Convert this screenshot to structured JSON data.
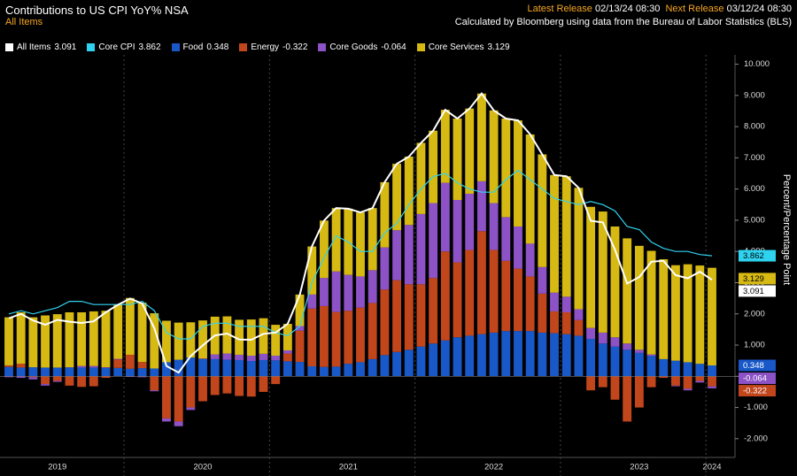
{
  "chart_data": {
    "type": "bar",
    "title": "Contributions to US CPI YoY% NSA",
    "subtitle": "All Items",
    "latest_release_label": "Latest Release",
    "latest_release": "02/13/24 08:30",
    "next_release_label": "Next Release",
    "next_release": "03/12/24 08:30",
    "source": "Calculated by Bloomberg using data from the Bureau of Labor Statistics (BLS)",
    "y_label": "Percent/Percentage Point",
    "categories": [
      null,
      null,
      null,
      null,
      "2019",
      null,
      null,
      null,
      null,
      null,
      null,
      null,
      null,
      null,
      null,
      null,
      "2020",
      null,
      null,
      null,
      null,
      null,
      null,
      null,
      null,
      null,
      null,
      null,
      "2021",
      null,
      null,
      null,
      null,
      null,
      null,
      null,
      null,
      null,
      null,
      null,
      "2022",
      null,
      null,
      null,
      null,
      null,
      null,
      null,
      null,
      null,
      null,
      null,
      "2023",
      null,
      null,
      null,
      null,
      null,
      "2024"
    ],
    "ylim": [
      -2.6,
      10.3
    ],
    "yticks": [
      {
        "value": 10,
        "label": "10.000"
      },
      {
        "value": 9,
        "label": "9.000"
      },
      {
        "value": 8,
        "label": "8.000"
      },
      {
        "value": 7,
        "label": "7.000"
      },
      {
        "value": 6,
        "label": "6.000"
      },
      {
        "value": 5,
        "label": "5.000"
      },
      {
        "value": 4,
        "label": "4.000"
      },
      {
        "value": 3,
        "label": "3.000"
      },
      {
        "value": 2,
        "label": "2.000"
      },
      {
        "value": 1,
        "label": "1.000"
      },
      {
        "value": 0,
        "label": "0.000"
      },
      {
        "value": -1,
        "label": "-1.000"
      },
      {
        "value": -2,
        "label": "-2.000"
      }
    ],
    "series": [
      {
        "name": "All Items",
        "type": "line",
        "color": "#ffffff",
        "values": [
          1.86,
          2.0,
          1.79,
          1.65,
          1.81,
          1.75,
          1.71,
          1.76,
          2.05,
          2.29,
          2.49,
          2.33,
          1.54,
          0.33,
          0.12,
          0.65,
          0.99,
          1.31,
          1.37,
          1.18,
          1.17,
          1.36,
          1.4,
          1.68,
          2.62,
          4.16,
          4.99,
          5.39,
          5.37,
          5.25,
          5.39,
          6.22,
          6.81,
          7.04,
          7.48,
          7.87,
          8.54,
          8.26,
          8.58,
          9.06,
          8.52,
          8.26,
          8.2,
          7.75,
          7.11,
          6.45,
          6.41,
          6.04,
          4.98,
          4.93,
          4.05,
          2.97,
          3.18,
          3.67,
          3.7,
          3.24,
          3.14,
          3.35,
          3.091
        ]
      },
      {
        "name": "Core CPI",
        "type": "line",
        "color": "#2fd3f0",
        "values": [
          2.0,
          2.1,
          2.0,
          2.1,
          2.2,
          2.4,
          2.4,
          2.3,
          2.3,
          2.3,
          2.3,
          2.4,
          2.1,
          1.4,
          1.2,
          1.2,
          1.6,
          1.7,
          1.7,
          1.6,
          1.6,
          1.6,
          1.4,
          1.3,
          1.6,
          3.0,
          3.8,
          4.5,
          4.3,
          4.0,
          4.0,
          4.6,
          4.9,
          5.5,
          6.0,
          6.4,
          6.5,
          6.2,
          6.0,
          5.9,
          5.9,
          6.3,
          6.6,
          6.3,
          6.0,
          5.7,
          5.6,
          5.5,
          5.6,
          5.5,
          5.3,
          4.8,
          4.7,
          4.3,
          4.1,
          4.0,
          4.0,
          3.9,
          3.862
        ]
      },
      {
        "name": "Food",
        "type": "bar",
        "color": "#1858c8",
        "values": [
          0.3,
          0.28,
          0.29,
          0.28,
          0.28,
          0.28,
          0.28,
          0.28,
          0.27,
          0.27,
          0.24,
          0.26,
          0.25,
          0.45,
          0.53,
          0.6,
          0.55,
          0.55,
          0.53,
          0.52,
          0.49,
          0.52,
          0.51,
          0.48,
          0.46,
          0.32,
          0.3,
          0.31,
          0.4,
          0.45,
          0.55,
          0.68,
          0.78,
          0.85,
          0.95,
          1.05,
          1.15,
          1.25,
          1.3,
          1.35,
          1.4,
          1.45,
          1.45,
          1.45,
          1.4,
          1.38,
          1.35,
          1.3,
          1.2,
          1.05,
          0.95,
          0.85,
          0.75,
          0.65,
          0.55,
          0.5,
          0.45,
          0.4,
          0.348
        ]
      },
      {
        "name": "Energy",
        "type": "bar",
        "color": "#c2461c",
        "values": [
          0.05,
          0.12,
          -0.03,
          -0.25,
          -0.15,
          -0.3,
          -0.34,
          -0.32,
          -0.05,
          0.27,
          0.45,
          0.2,
          -0.45,
          -1.35,
          -1.45,
          -1.0,
          -0.8,
          -0.6,
          -0.55,
          -0.63,
          -0.65,
          -0.5,
          -0.25,
          0.25,
          1.0,
          1.85,
          1.95,
          1.75,
          1.7,
          1.75,
          1.8,
          2.1,
          2.3,
          2.1,
          2.0,
          2.1,
          2.85,
          2.4,
          2.75,
          3.3,
          2.65,
          2.25,
          2.0,
          1.75,
          1.25,
          0.7,
          0.7,
          0.5,
          -0.45,
          -0.35,
          -0.75,
          -1.45,
          -1.0,
          -0.35,
          -0.05,
          -0.3,
          -0.4,
          -0.15,
          -0.322
        ]
      },
      {
        "name": "Core Goods",
        "type": "bar",
        "color": "#8c52c6",
        "values": [
          -0.03,
          -0.05,
          -0.07,
          -0.05,
          -0.03,
          0.01,
          0.05,
          0.05,
          0.02,
          0.02,
          -0.02,
          -0.03,
          -0.03,
          -0.1,
          -0.15,
          -0.08,
          0.02,
          0.15,
          0.2,
          0.17,
          0.17,
          0.2,
          0.15,
          0.1,
          0.15,
          0.45,
          0.9,
          1.3,
          1.15,
          1.0,
          1.05,
          1.35,
          1.6,
          1.9,
          2.25,
          2.4,
          2.2,
          2.0,
          1.8,
          1.6,
          1.5,
          1.4,
          1.35,
          1.05,
          0.85,
          0.6,
          0.5,
          0.35,
          0.35,
          0.35,
          0.3,
          0.2,
          0.1,
          0.05,
          0.0,
          -0.02,
          -0.05,
          -0.05,
          -0.064
        ]
      },
      {
        "name": "Core Services",
        "type": "bar",
        "color": "#d6b912",
        "values": [
          1.54,
          1.65,
          1.6,
          1.67,
          1.71,
          1.76,
          1.72,
          1.75,
          1.81,
          1.73,
          1.82,
          1.9,
          1.77,
          1.33,
          1.19,
          1.13,
          1.22,
          1.21,
          1.19,
          1.12,
          1.16,
          1.14,
          0.99,
          0.85,
          1.01,
          1.54,
          1.84,
          2.03,
          2.12,
          2.05,
          1.99,
          2.09,
          2.13,
          2.19,
          2.28,
          2.32,
          2.34,
          2.61,
          2.73,
          2.81,
          2.97,
          3.16,
          3.4,
          3.5,
          3.61,
          3.77,
          3.86,
          3.89,
          3.88,
          3.88,
          3.55,
          3.37,
          3.33,
          3.32,
          3.2,
          3.06,
          3.14,
          3.15,
          3.129
        ]
      }
    ]
  }
}
